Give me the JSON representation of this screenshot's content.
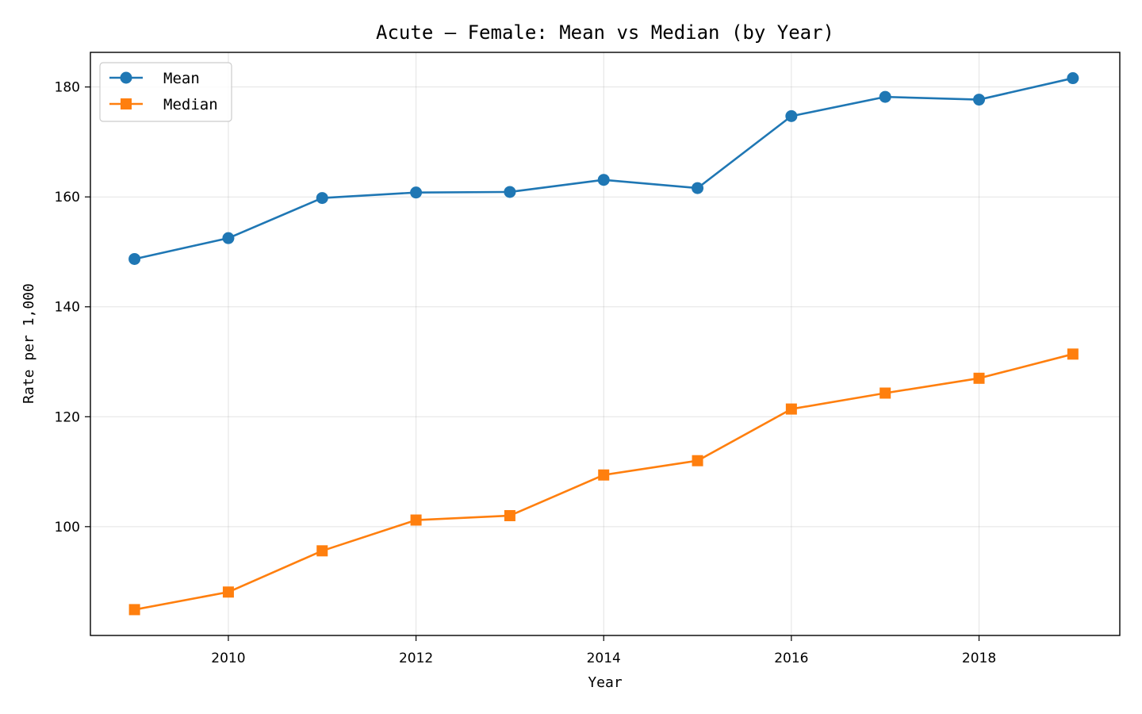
{
  "chart_data": {
    "type": "line",
    "title": "Acute — Female: Mean vs Median (by Year)",
    "xlabel": "Year",
    "ylabel": "Rate per 1,000",
    "x": [
      2009,
      2010,
      2011,
      2012,
      2013,
      2014,
      2015,
      2016,
      2017,
      2018,
      2019
    ],
    "xlim": [
      2008.53,
      2019.5
    ],
    "ylim": [
      80.2,
      186.3
    ],
    "xticks": [
      2010,
      2012,
      2014,
      2016,
      2018
    ],
    "yticks": [
      100,
      120,
      140,
      160,
      180
    ],
    "grid": true,
    "legend_position": "top-left",
    "series": [
      {
        "name": "Mean",
        "color": "#1f77b4",
        "marker": "circle",
        "values": [
          148.7,
          152.5,
          159.8,
          160.8,
          160.9,
          163.1,
          161.6,
          174.7,
          178.2,
          177.7,
          181.6
        ]
      },
      {
        "name": "Median",
        "color": "#ff7f0e",
        "marker": "square",
        "values": [
          84.9,
          88.1,
          95.6,
          101.2,
          102.0,
          109.4,
          112.0,
          121.4,
          124.3,
          127.0,
          131.4
        ]
      }
    ]
  }
}
